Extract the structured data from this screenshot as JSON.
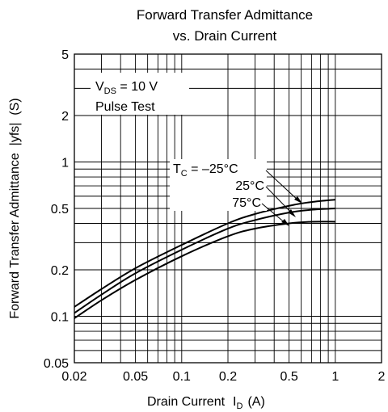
{
  "chart_data": {
    "type": "line",
    "title_line1": "Forward Transfer Admittance",
    "title_line2": "vs. Drain Current",
    "xlabel_text": "Drain Current",
    "xlabel_symbol": "I",
    "xlabel_sub": "D",
    "xlabel_unit": "(A)",
    "ylabel": "Forward Transfer Admittance  |yfs|  (S)",
    "x_scale": "log",
    "y_scale": "log",
    "xlim": [
      0.02,
      2
    ],
    "ylim": [
      0.05,
      5
    ],
    "x_ticks": [
      0.02,
      0.05,
      0.1,
      0.2,
      0.5,
      1,
      2
    ],
    "x_tick_labels": [
      "0.02",
      "0.05",
      "0.1",
      "0.2",
      "0.5",
      "1",
      "2"
    ],
    "y_ticks": [
      0.05,
      0.1,
      0.2,
      0.5,
      1,
      2,
      5
    ],
    "y_tick_labels": [
      "0.05",
      "0.1",
      "0.2",
      "0.5",
      "1",
      "2",
      "5"
    ],
    "grid": true,
    "annotations": {
      "condition_line1_prefix": "V",
      "condition_line1_sub": "DS",
      "condition_line1_suffix": " = 10 V",
      "condition_line2": "Pulse Test",
      "tc_prefix": "T",
      "tc_sub": "C",
      "tc_value": " = –25°C",
      "tc_2": "25°C",
      "tc_3": "75°C"
    },
    "series": [
      {
        "name": "–25°C",
        "x": [
          0.02,
          0.03,
          0.05,
          0.1,
          0.2,
          0.3,
          0.5,
          0.7,
          1
        ],
        "y": [
          0.115,
          0.15,
          0.205,
          0.29,
          0.4,
          0.46,
          0.52,
          0.55,
          0.57
        ]
      },
      {
        "name": "25°C",
        "x": [
          0.02,
          0.03,
          0.05,
          0.1,
          0.2,
          0.3,
          0.5,
          0.7,
          1
        ],
        "y": [
          0.105,
          0.138,
          0.19,
          0.27,
          0.37,
          0.42,
          0.47,
          0.49,
          0.5
        ]
      },
      {
        "name": "75°C",
        "x": [
          0.02,
          0.03,
          0.05,
          0.1,
          0.2,
          0.3,
          0.5,
          0.7,
          1
        ],
        "y": [
          0.097,
          0.127,
          0.172,
          0.245,
          0.33,
          0.37,
          0.4,
          0.41,
          0.41
        ]
      }
    ]
  }
}
